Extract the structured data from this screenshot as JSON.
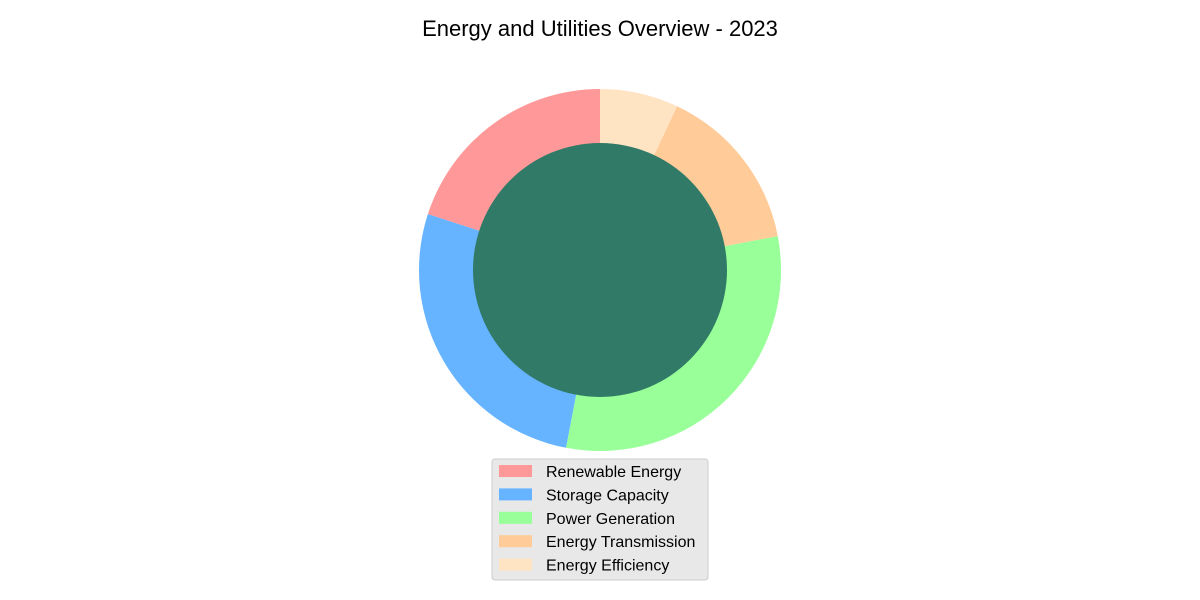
{
  "chart_data": {
    "type": "pie",
    "style": "donut",
    "title": "Energy and Utilities Overview - 2023",
    "categories": [
      "Renewable Energy",
      "Storage Capacity",
      "Power Generation",
      "Energy Transmission",
      "Energy Efficiency"
    ],
    "values": [
      20,
      27,
      31,
      15,
      7
    ],
    "colors": [
      "#FF9999",
      "#66B3FF",
      "#99FF99",
      "#FFCC99",
      "#FFE4C4"
    ],
    "center_color": "#307A67",
    "start_angle_deg": 90,
    "direction": "counterclockwise",
    "legend_position": "bottom-center"
  }
}
